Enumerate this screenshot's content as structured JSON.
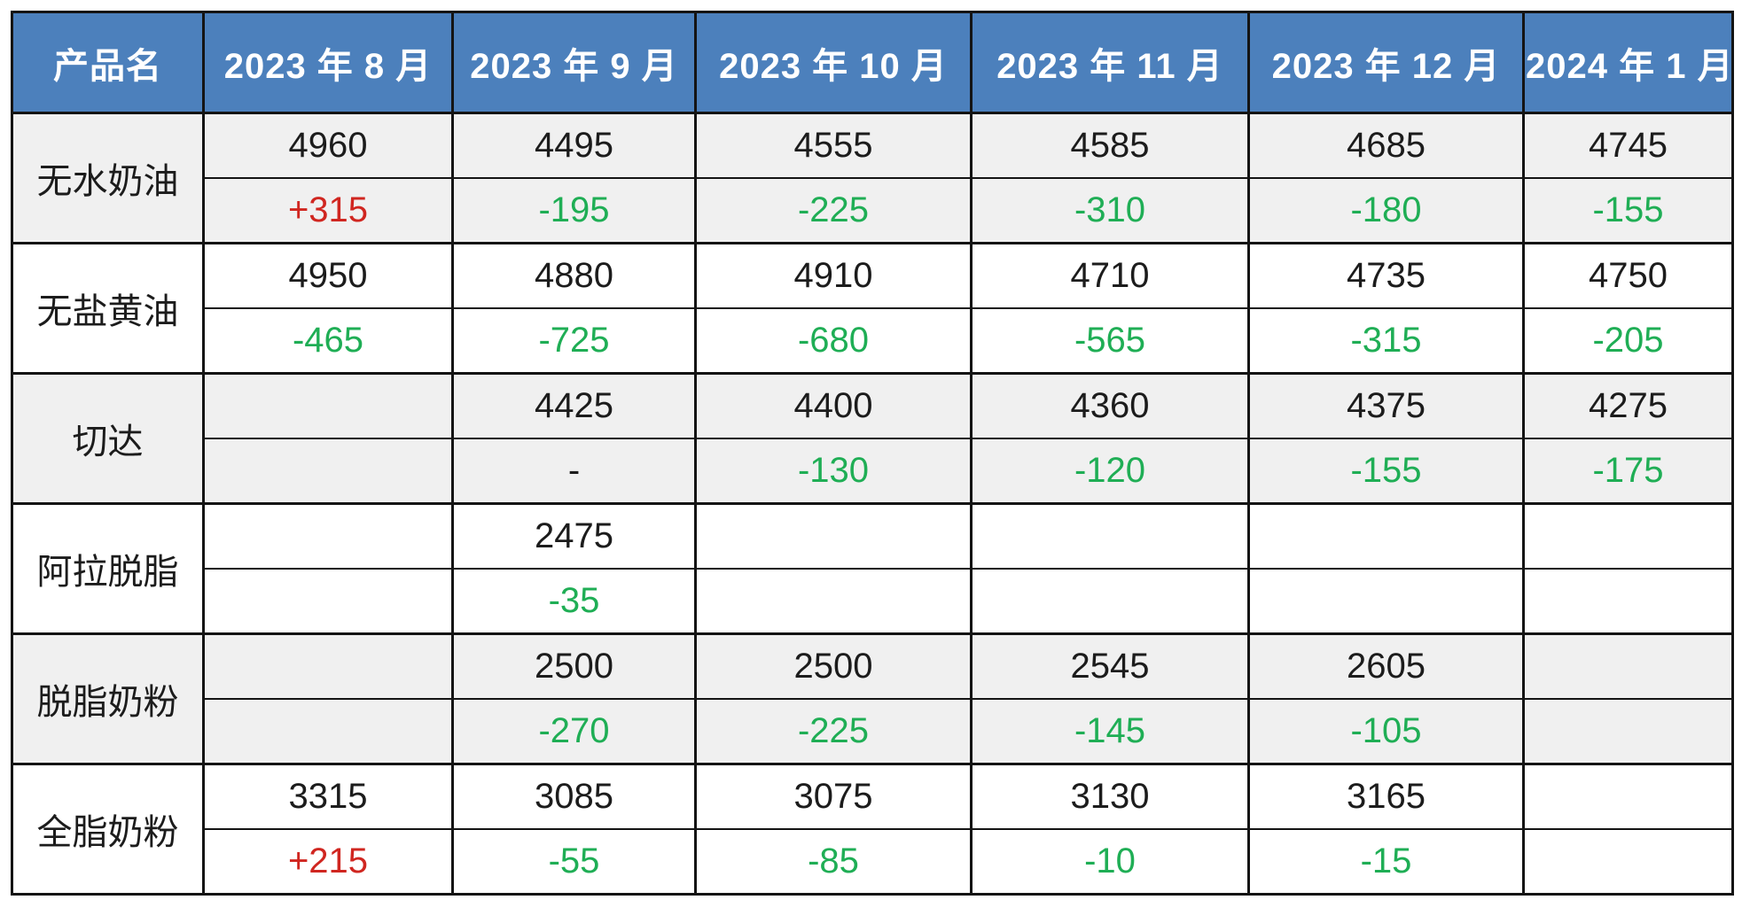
{
  "table": {
    "columns": [
      "产品名",
      "2023 年 8 月",
      "2023 年 9 月",
      "2023 年 10 月",
      "2023 年 11 月",
      "2023 年 12 月",
      "2024 年 1 月"
    ],
    "rows": [
      {
        "name": "无水奶油",
        "prices": [
          "4960",
          "4495",
          "4555",
          "4585",
          "4685",
          "4745"
        ],
        "changes": [
          "+315",
          "-195",
          "-225",
          "-310",
          "-180",
          "-155"
        ]
      },
      {
        "name": "无盐黄油",
        "prices": [
          "4950",
          "4880",
          "4910",
          "4710",
          "4735",
          "4750"
        ],
        "changes": [
          "-465",
          "-725",
          "-680",
          "-565",
          "-315",
          "-205"
        ]
      },
      {
        "name": "切达",
        "prices": [
          "",
          "4425",
          "4400",
          "4360",
          "4375",
          "4275"
        ],
        "changes": [
          "",
          "-",
          "-130",
          "-120",
          "-155",
          "-175"
        ]
      },
      {
        "name": "阿拉脱脂",
        "prices": [
          "",
          "2475",
          "",
          "",
          "",
          ""
        ],
        "changes": [
          "",
          "-35",
          "",
          "",
          "",
          ""
        ]
      },
      {
        "name": "脱脂奶粉",
        "prices": [
          "",
          "2500",
          "2500",
          "2545",
          "2605",
          ""
        ],
        "changes": [
          "",
          "-270",
          "-225",
          "-145",
          "-105",
          ""
        ]
      },
      {
        "name": "全脂奶粉",
        "prices": [
          "3315",
          "3085",
          "3075",
          "3130",
          "3165",
          ""
        ],
        "changes": [
          "+215",
          "-55",
          "-85",
          "-10",
          "-15",
          ""
        ]
      }
    ]
  },
  "colors": {
    "header_bg": "#4c80bc",
    "header_text": "#ffffff",
    "positive_change": "#d02620",
    "negative_change": "#1fae55",
    "neutral_text": "#1c1c1c",
    "alt_group_bg": "#f0f0f0",
    "group_bg": "#ffffff",
    "border": "#141414"
  }
}
